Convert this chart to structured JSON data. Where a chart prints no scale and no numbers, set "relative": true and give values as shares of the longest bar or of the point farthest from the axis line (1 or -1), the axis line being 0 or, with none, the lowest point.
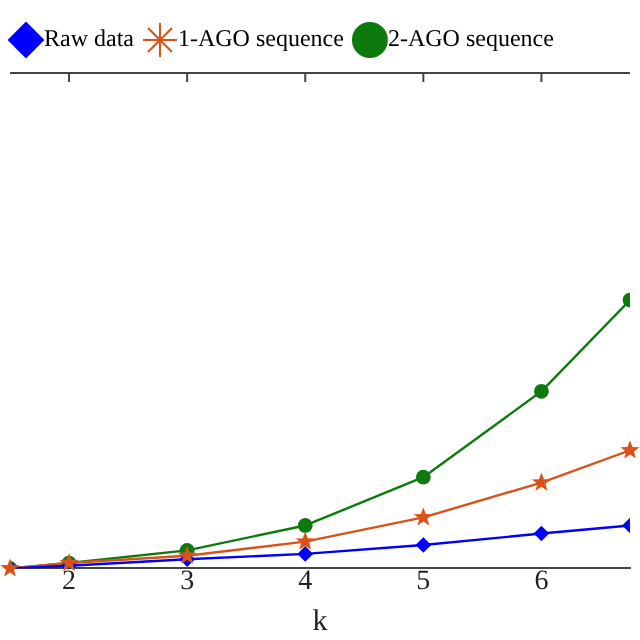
{
  "chart_data": {
    "type": "line",
    "relative": true,
    "xlabel": "k",
    "x": [
      1.5,
      2,
      3,
      4,
      5,
      6,
      6.75
    ],
    "xlim": [
      1.5,
      6.75
    ],
    "xticks": [
      2,
      3,
      4,
      5,
      6
    ],
    "legend": "top left",
    "grid": false,
    "series": [
      {
        "name": "Raw data",
        "color": "#0000ff",
        "marker": "diamond",
        "values": [
          0,
          0.01,
          0.034,
          0.054,
          0.087,
          0.13,
          0.16
        ]
      },
      {
        "name": "1-AGO sequence",
        "color": "#d95319",
        "marker": "star",
        "values": [
          0,
          0.02,
          0.047,
          0.1,
          0.19,
          0.32,
          0.44
        ]
      },
      {
        "name": "2-AGO sequence",
        "color": "#0e7a0e",
        "marker": "circle",
        "values": [
          0,
          0.02,
          0.067,
          0.16,
          0.34,
          0.66,
          1
        ]
      }
    ]
  }
}
